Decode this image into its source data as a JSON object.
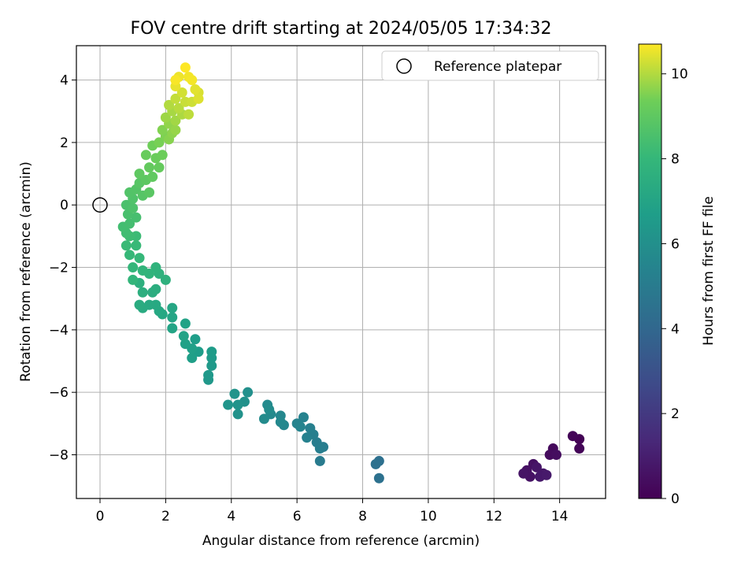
{
  "chart_data": {
    "type": "scatter",
    "title": "FOV centre drift starting at 2024/05/05 17:34:32",
    "xlabel": "Angular distance from reference (arcmin)",
    "ylabel": "Rotation from reference (arcmin)",
    "xlim": [
      -0.72,
      15.4
    ],
    "ylim": [
      -9.4,
      5.1
    ],
    "xticks": [
      0,
      2,
      4,
      6,
      8,
      10,
      12,
      14
    ],
    "yticks": [
      -8,
      -6,
      -4,
      -2,
      0,
      2,
      4
    ],
    "grid": true,
    "legend": {
      "location": "top-right",
      "entries": [
        {
          "label": "Reference platepar",
          "marker": "open-circle"
        }
      ]
    },
    "reference_point": {
      "x": 0,
      "y": 0,
      "label": "Reference platepar"
    },
    "colorbar": {
      "label": "Hours from first FF file",
      "range": [
        0,
        10.7
      ],
      "ticks": [
        0,
        2,
        4,
        6,
        8,
        10
      ],
      "colormap": "viridis"
    },
    "series": [
      {
        "color_encodes": "Hours from first FF file",
        "points": [
          {
            "x": 14.6,
            "y": -7.5,
            "t": 0.05
          },
          {
            "x": 14.4,
            "y": -7.4,
            "t": 0.1
          },
          {
            "x": 14.6,
            "y": -7.8,
            "t": 0.15
          },
          {
            "x": 13.8,
            "y": -7.8,
            "t": 0.3
          },
          {
            "x": 13.7,
            "y": -8.0,
            "t": 0.35
          },
          {
            "x": 13.9,
            "y": -8.0,
            "t": 0.4
          },
          {
            "x": 13.2,
            "y": -8.3,
            "t": 0.5
          },
          {
            "x": 13.0,
            "y": -8.5,
            "t": 0.55
          },
          {
            "x": 13.1,
            "y": -8.7,
            "t": 0.6
          },
          {
            "x": 12.9,
            "y": -8.6,
            "t": 0.65
          },
          {
            "x": 13.3,
            "y": -8.4,
            "t": 0.7
          },
          {
            "x": 13.5,
            "y": -8.6,
            "t": 0.75
          },
          {
            "x": 13.4,
            "y": -8.7,
            "t": 0.8
          },
          {
            "x": 13.6,
            "y": -8.65,
            "t": 0.85
          },
          {
            "x": 8.5,
            "y": -8.2,
            "t": 4.4
          },
          {
            "x": 8.4,
            "y": -8.3,
            "t": 4.45
          },
          {
            "x": 8.5,
            "y": -8.75,
            "t": 4.5
          },
          {
            "x": 6.7,
            "y": -8.2,
            "t": 5.0
          },
          {
            "x": 6.8,
            "y": -7.75,
            "t": 5.05
          },
          {
            "x": 6.6,
            "y": -7.6,
            "t": 5.1
          },
          {
            "x": 6.7,
            "y": -7.8,
            "t": 5.15
          },
          {
            "x": 6.5,
            "y": -7.35,
            "t": 5.2
          },
          {
            "x": 6.4,
            "y": -7.15,
            "t": 5.25
          },
          {
            "x": 6.3,
            "y": -7.45,
            "t": 5.3
          },
          {
            "x": 6.2,
            "y": -6.8,
            "t": 5.35
          },
          {
            "x": 6.0,
            "y": -7.0,
            "t": 5.4
          },
          {
            "x": 6.1,
            "y": -7.1,
            "t": 5.45
          },
          {
            "x": 5.6,
            "y": -7.05,
            "t": 5.55
          },
          {
            "x": 5.5,
            "y": -6.75,
            "t": 5.6
          },
          {
            "x": 5.5,
            "y": -6.95,
            "t": 5.65
          },
          {
            "x": 5.2,
            "y": -6.7,
            "t": 5.7
          },
          {
            "x": 5.1,
            "y": -6.4,
            "t": 5.75
          },
          {
            "x": 5.0,
            "y": -6.85,
            "t": 5.8
          },
          {
            "x": 5.15,
            "y": -6.55,
            "t": 5.85
          },
          {
            "x": 4.5,
            "y": -6.0,
            "t": 6.0
          },
          {
            "x": 4.4,
            "y": -6.3,
            "t": 6.05
          },
          {
            "x": 4.2,
            "y": -6.7,
            "t": 6.1
          },
          {
            "x": 4.2,
            "y": -6.4,
            "t": 6.15
          },
          {
            "x": 4.1,
            "y": -6.05,
            "t": 6.2
          },
          {
            "x": 3.9,
            "y": -6.4,
            "t": 6.25
          },
          {
            "x": 3.3,
            "y": -5.6,
            "t": 6.4
          },
          {
            "x": 3.3,
            "y": -5.45,
            "t": 6.45
          },
          {
            "x": 3.4,
            "y": -5.15,
            "t": 6.5
          },
          {
            "x": 3.4,
            "y": -4.9,
            "t": 6.55
          },
          {
            "x": 3.4,
            "y": -4.7,
            "t": 6.6
          },
          {
            "x": 3.0,
            "y": -4.7,
            "t": 6.65
          },
          {
            "x": 2.9,
            "y": -4.3,
            "t": 6.7
          },
          {
            "x": 2.8,
            "y": -4.9,
            "t": 6.75
          },
          {
            "x": 2.8,
            "y": -4.6,
            "t": 6.8
          },
          {
            "x": 2.6,
            "y": -4.45,
            "t": 6.85
          },
          {
            "x": 2.6,
            "y": -3.8,
            "t": 6.9
          },
          {
            "x": 2.55,
            "y": -4.2,
            "t": 6.95
          },
          {
            "x": 2.2,
            "y": -3.95,
            "t": 7.0
          },
          {
            "x": 2.2,
            "y": -3.6,
            "t": 7.05
          },
          {
            "x": 2.2,
            "y": -3.3,
            "t": 7.1
          },
          {
            "x": 1.9,
            "y": -3.5,
            "t": 7.15
          },
          {
            "x": 1.8,
            "y": -3.4,
            "t": 7.2
          },
          {
            "x": 1.7,
            "y": -3.2,
            "t": 7.25
          },
          {
            "x": 1.5,
            "y": -3.2,
            "t": 7.3
          },
          {
            "x": 1.3,
            "y": -3.3,
            "t": 7.35
          },
          {
            "x": 1.2,
            "y": -3.2,
            "t": 7.4
          },
          {
            "x": 1.6,
            "y": -2.8,
            "t": 7.45
          },
          {
            "x": 1.7,
            "y": -2.7,
            "t": 7.5
          },
          {
            "x": 1.3,
            "y": -2.8,
            "t": 7.55
          },
          {
            "x": 1.2,
            "y": -2.5,
            "t": 7.6
          },
          {
            "x": 2.0,
            "y": -2.4,
            "t": 7.65
          },
          {
            "x": 1.8,
            "y": -2.2,
            "t": 7.7
          },
          {
            "x": 1.7,
            "y": -2.0,
            "t": 7.75
          },
          {
            "x": 1.5,
            "y": -2.2,
            "t": 7.8
          },
          {
            "x": 1.3,
            "y": -2.1,
            "t": 7.85
          },
          {
            "x": 1.0,
            "y": -2.4,
            "t": 7.9
          },
          {
            "x": 1.0,
            "y": -2.0,
            "t": 7.95
          },
          {
            "x": 1.2,
            "y": -1.7,
            "t": 8.0
          },
          {
            "x": 0.9,
            "y": -1.6,
            "t": 8.05
          },
          {
            "x": 1.1,
            "y": -1.3,
            "t": 8.1
          },
          {
            "x": 0.8,
            "y": -1.3,
            "t": 8.15
          },
          {
            "x": 1.1,
            "y": -1.0,
            "t": 8.2
          },
          {
            "x": 0.9,
            "y": -1.0,
            "t": 8.25
          },
          {
            "x": 0.8,
            "y": -0.9,
            "t": 8.3
          },
          {
            "x": 0.7,
            "y": -0.7,
            "t": 8.35
          },
          {
            "x": 0.9,
            "y": -0.6,
            "t": 8.4
          },
          {
            "x": 1.1,
            "y": -0.4,
            "t": 8.45
          },
          {
            "x": 0.85,
            "y": -0.3,
            "t": 8.5
          },
          {
            "x": 0.8,
            "y": 0.0,
            "t": 8.55
          },
          {
            "x": 1.0,
            "y": -0.1,
            "t": 8.6
          },
          {
            "x": 1.0,
            "y": 0.2,
            "t": 8.65
          },
          {
            "x": 0.9,
            "y": 0.4,
            "t": 8.7
          },
          {
            "x": 1.1,
            "y": 0.5,
            "t": 8.75
          },
          {
            "x": 1.3,
            "y": 0.3,
            "t": 8.8
          },
          {
            "x": 1.2,
            "y": 0.7,
            "t": 8.85
          },
          {
            "x": 1.5,
            "y": 0.4,
            "t": 8.9
          },
          {
            "x": 1.4,
            "y": 0.8,
            "t": 8.95
          },
          {
            "x": 1.2,
            "y": 1.0,
            "t": 9.0
          },
          {
            "x": 1.6,
            "y": 0.9,
            "t": 9.05
          },
          {
            "x": 1.5,
            "y": 1.2,
            "t": 9.1
          },
          {
            "x": 1.8,
            "y": 1.2,
            "t": 9.15
          },
          {
            "x": 1.4,
            "y": 1.6,
            "t": 9.2
          },
          {
            "x": 1.7,
            "y": 1.5,
            "t": 9.25
          },
          {
            "x": 1.9,
            "y": 1.6,
            "t": 9.3
          },
          {
            "x": 1.6,
            "y": 1.9,
            "t": 9.35
          },
          {
            "x": 1.8,
            "y": 2.0,
            "t": 9.45
          },
          {
            "x": 2.0,
            "y": 2.2,
            "t": 9.5
          },
          {
            "x": 1.9,
            "y": 2.4,
            "t": 9.55
          },
          {
            "x": 2.1,
            "y": 2.1,
            "t": 9.6
          },
          {
            "x": 2.2,
            "y": 2.3,
            "t": 9.65
          },
          {
            "x": 2.1,
            "y": 2.6,
            "t": 9.7
          },
          {
            "x": 2.3,
            "y": 2.4,
            "t": 9.75
          },
          {
            "x": 2.0,
            "y": 2.8,
            "t": 9.8
          },
          {
            "x": 2.3,
            "y": 2.7,
            "t": 9.85
          },
          {
            "x": 2.2,
            "y": 3.0,
            "t": 9.9
          },
          {
            "x": 2.5,
            "y": 2.9,
            "t": 9.95
          },
          {
            "x": 2.1,
            "y": 3.2,
            "t": 10.0
          },
          {
            "x": 2.4,
            "y": 3.1,
            "t": 10.05
          },
          {
            "x": 2.7,
            "y": 2.9,
            "t": 10.1
          },
          {
            "x": 2.3,
            "y": 3.4,
            "t": 10.15
          },
          {
            "x": 2.6,
            "y": 3.3,
            "t": 10.2
          },
          {
            "x": 2.8,
            "y": 3.3,
            "t": 10.25
          },
          {
            "x": 2.5,
            "y": 3.6,
            "t": 10.3
          },
          {
            "x": 3.0,
            "y": 3.6,
            "t": 10.35
          },
          {
            "x": 3.0,
            "y": 3.4,
            "t": 10.4
          },
          {
            "x": 2.9,
            "y": 3.7,
            "t": 10.45
          },
          {
            "x": 2.3,
            "y": 3.8,
            "t": 10.5
          },
          {
            "x": 2.4,
            "y": 4.1,
            "t": 10.55
          },
          {
            "x": 2.7,
            "y": 4.1,
            "t": 10.6
          },
          {
            "x": 2.8,
            "y": 4.0,
            "t": 10.62
          },
          {
            "x": 2.3,
            "y": 4.0,
            "t": 10.65
          },
          {
            "x": 2.6,
            "y": 4.4,
            "t": 10.7
          }
        ]
      }
    ]
  }
}
